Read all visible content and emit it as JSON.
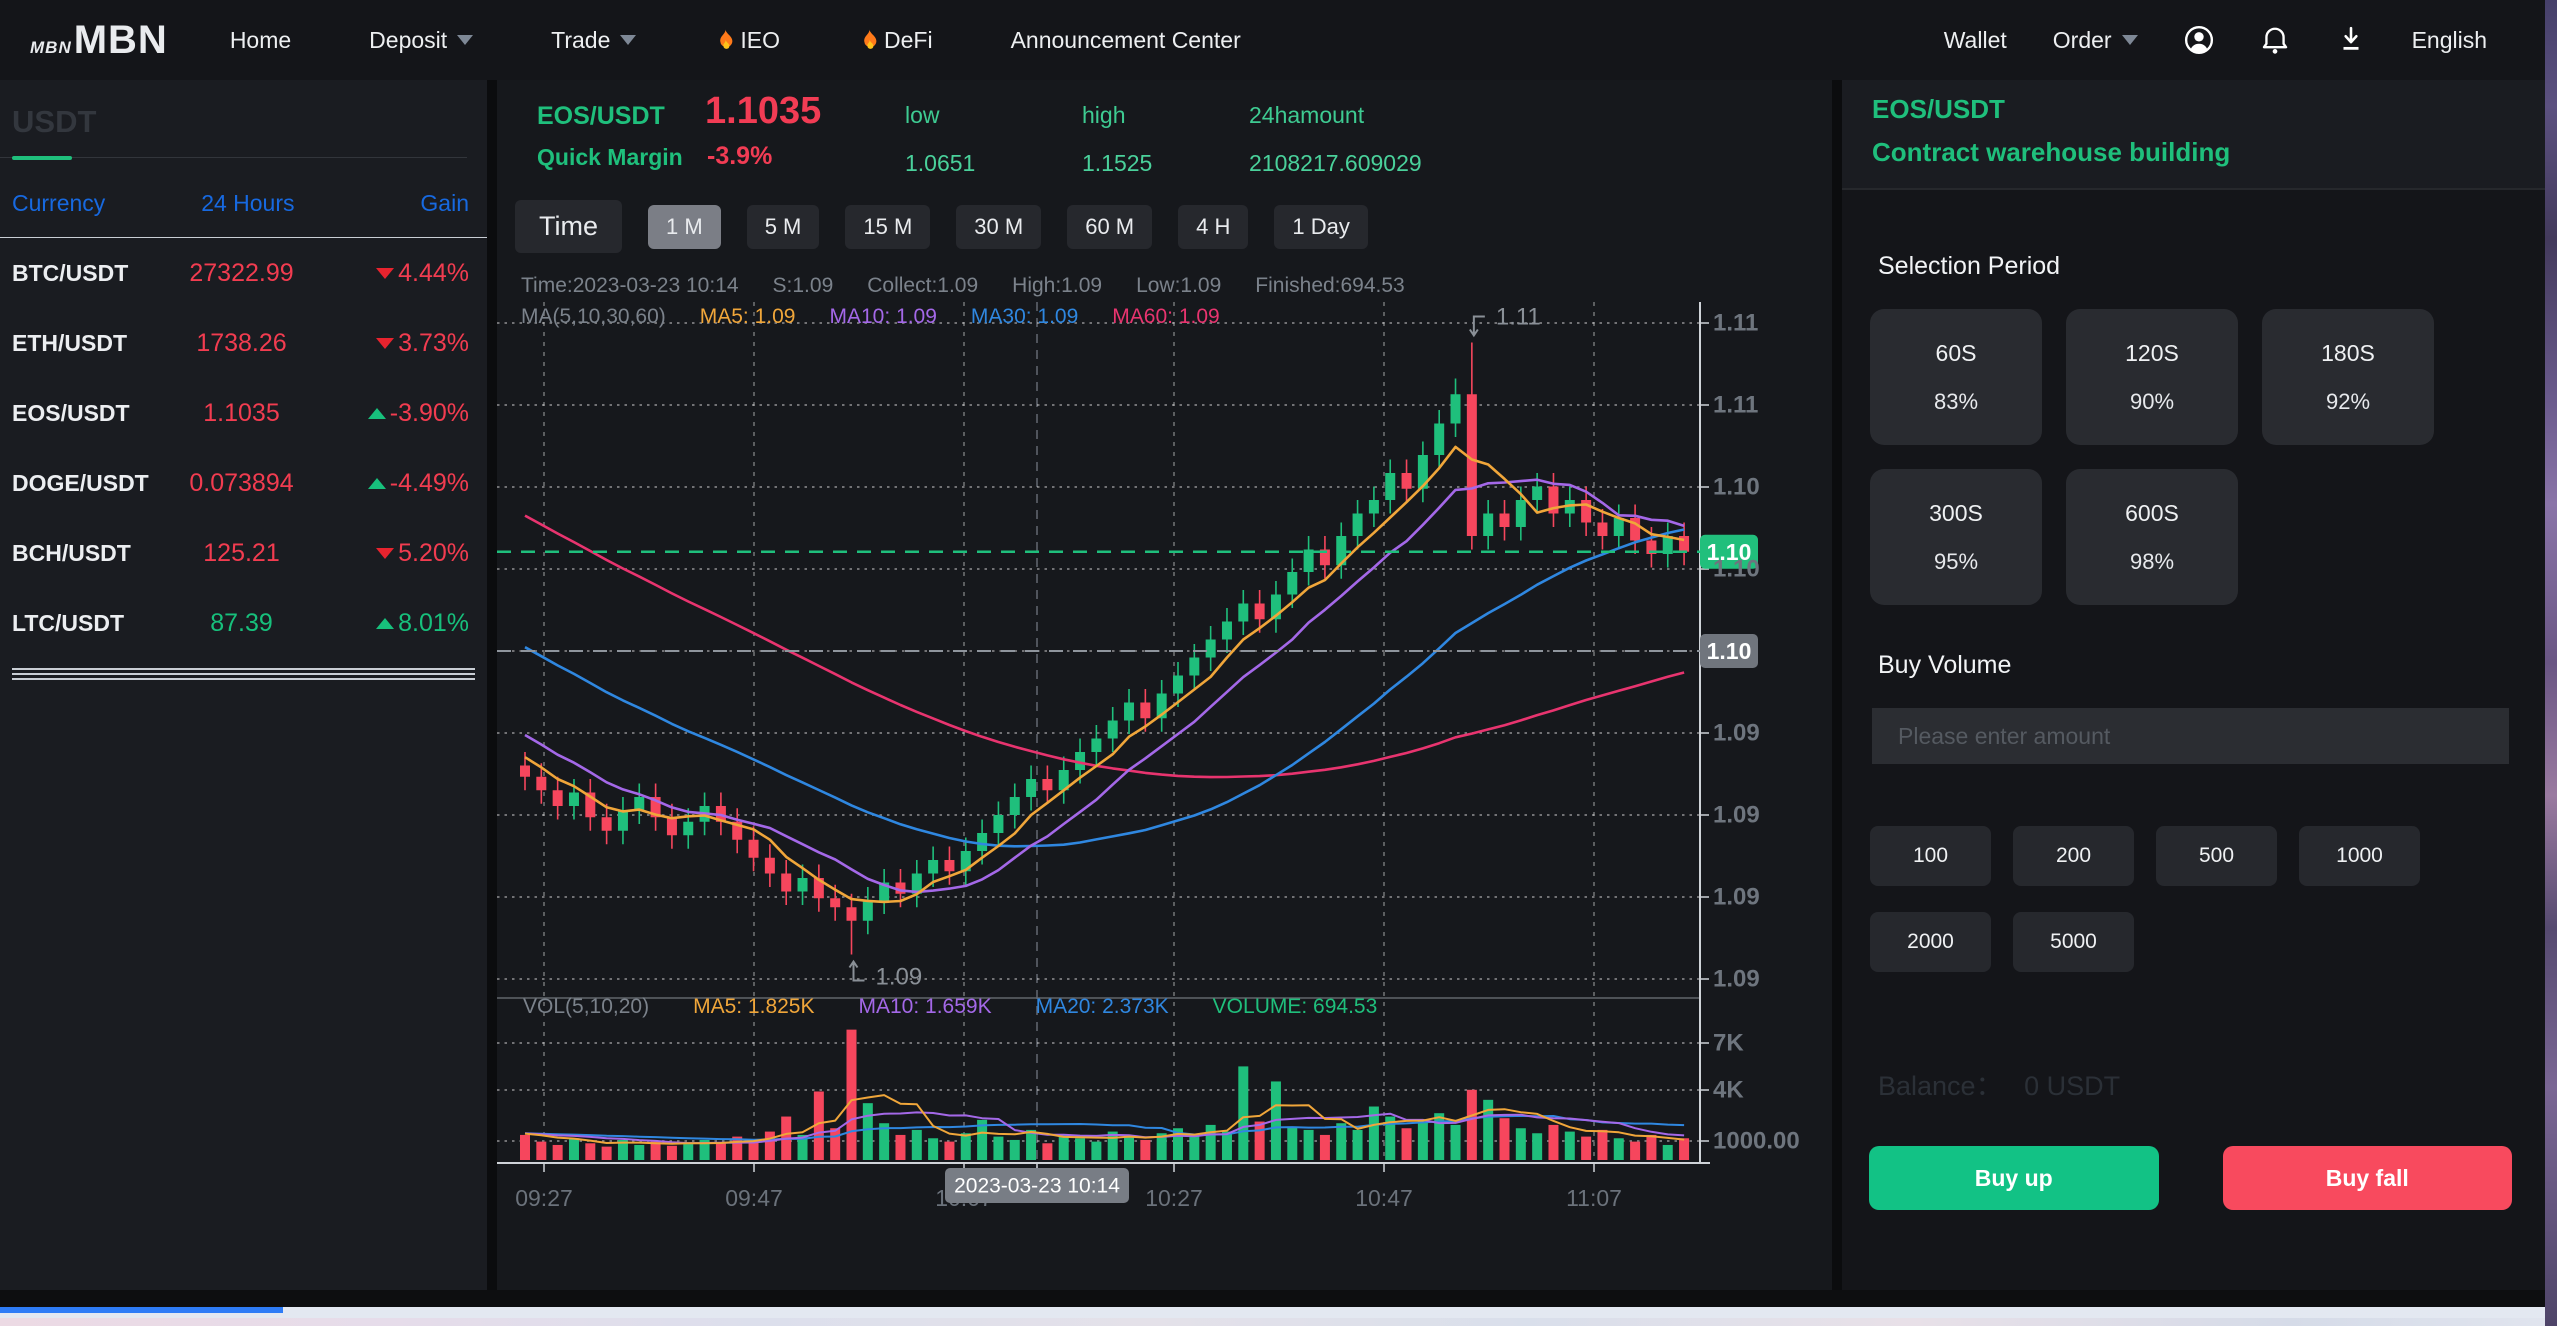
{
  "navbar": {
    "logo_small": "MBN",
    "logo_big": "MBN",
    "items": [
      {
        "label": "Home",
        "caret": false,
        "flame": false
      },
      {
        "label": "Deposit",
        "caret": true,
        "flame": false
      },
      {
        "label": "Trade",
        "caret": true,
        "flame": false
      },
      {
        "label": "IEO",
        "caret": false,
        "flame": true
      },
      {
        "label": "DeFi",
        "caret": false,
        "flame": true
      },
      {
        "label": "Announcement Center",
        "caret": false,
        "flame": false
      }
    ],
    "right_items": [
      {
        "label": "Wallet",
        "caret": false
      },
      {
        "label": "Order",
        "caret": true
      }
    ],
    "language": "English"
  },
  "sidebar": {
    "tab": "USDT",
    "headers": [
      "Currency",
      "24 Hours",
      "Gain"
    ],
    "rows": [
      {
        "pair": "BTC/USDT",
        "price": "27322.99",
        "price_color": "red",
        "arrow": "down",
        "change": "4.44%",
        "change_color": "red"
      },
      {
        "pair": "ETH/USDT",
        "price": "1738.26",
        "price_color": "red",
        "arrow": "down",
        "change": "3.73%",
        "change_color": "red"
      },
      {
        "pair": "EOS/USDT",
        "price": "1.1035",
        "price_color": "red",
        "arrow": "up",
        "change": "-3.90%",
        "change_color": "red"
      },
      {
        "pair": "DOGE/USDT",
        "price": "0.073894",
        "price_color": "red",
        "arrow": "up",
        "change": "-4.49%",
        "change_color": "red"
      },
      {
        "pair": "BCH/USDT",
        "price": "125.21",
        "price_color": "red",
        "arrow": "down",
        "change": "5.20%",
        "change_color": "red"
      },
      {
        "pair": "LTC/USDT",
        "price": "87.39",
        "price_color": "green",
        "arrow": "up",
        "change": "8.01%",
        "change_color": "green"
      }
    ]
  },
  "market_header": {
    "pair": "EOS/USDT",
    "price": "1.1035",
    "quick_margin_label": "Quick Margin",
    "change": "-3.9%",
    "stats": [
      {
        "label": "low",
        "value": "1.0651"
      },
      {
        "label": "high",
        "value": "1.1525"
      },
      {
        "label": "24hamount",
        "value": "2108217.609029"
      }
    ]
  },
  "timeframes": {
    "items": [
      "Time",
      "1 M",
      "5 M",
      "15 M",
      "30 M",
      "60 M",
      "4 H",
      "1 Day"
    ],
    "active_index": 1
  },
  "chart_data": {
    "type": "candlestick+volume",
    "title": "EOS/USDT 1M candles",
    "info_line": [
      "Time:2023-03-23 10:14",
      "S:1.09",
      "Collect:1.09",
      "High:1.09",
      "Low:1.09",
      "Finished:694.53"
    ],
    "ma_line_label": "MA(5,10,30,60)",
    "ma_items": [
      {
        "label": "MA5: 1.09",
        "color": "#f0a63a"
      },
      {
        "label": "MA10: 1.09",
        "color": "#a468e8"
      },
      {
        "label": "MA30: 1.09",
        "color": "#2f87e0"
      },
      {
        "label": "MA60: 1.09",
        "color": "#e8346f"
      }
    ],
    "vol_label": "VOL(5,10,20)",
    "vol_items": [
      {
        "label": "MA5: 1.825K",
        "color": "#f0a63a"
      },
      {
        "label": "MA10: 1.659K",
        "color": "#a468e8"
      },
      {
        "label": "MA20: 2.373K",
        "color": "#2f87e0"
      },
      {
        "label": "VOLUME: 694.53",
        "color": "#1fbf7c"
      }
    ],
    "x_labels": [
      "09:27",
      "09:47",
      "10:07",
      "10:27",
      "10:47",
      "11:07"
    ],
    "y_labels": [
      "1.11",
      "1.11",
      "1.10",
      "1.10",
      "",
      "1.09",
      "1.09",
      "1.09",
      "1.09"
    ],
    "vol_y_labels": [
      "7K",
      "4K",
      "1000.00"
    ],
    "tooltip": "2023-03-23 10:14",
    "current_price": 1.1035,
    "price_badge_label": "1.10",
    "marker_badge_label": "1.10",
    "annotations": [
      {
        "text": "1.11",
        "index": 58,
        "type": "high"
      },
      {
        "text": "1.09",
        "index": 20,
        "type": "low"
      }
    ],
    "open_first": 1.094,
    "closes": [
      1.0935,
      1.0929,
      1.0922,
      1.0928,
      1.0917,
      1.0911,
      1.092,
      1.0926,
      1.0917,
      1.0909,
      1.0915,
      1.0922,
      1.0915,
      1.0907,
      1.0899,
      1.0892,
      1.0884,
      1.089,
      1.0881,
      1.0877,
      1.0871,
      1.088,
      1.0888,
      1.0883,
      1.0892,
      1.0898,
      1.0893,
      1.0902,
      1.091,
      1.0918,
      1.0926,
      1.0934,
      1.0929,
      1.0938,
      1.0946,
      1.0952,
      1.096,
      1.0968,
      1.0961,
      1.0972,
      1.098,
      1.0988,
      1.0996,
      1.1004,
      1.1012,
      1.1005,
      1.1016,
      1.1026,
      1.1036,
      1.1029,
      1.1042,
      1.1052,
      1.1058,
      1.107,
      1.1063,
      1.1078,
      1.1092,
      1.1105,
      1.1042,
      1.1052,
      1.1046,
      1.1058,
      1.1064,
      1.1052,
      1.1058,
      1.1048,
      1.1042,
      1.105,
      1.104,
      1.1034,
      1.1042,
      1.1035
    ],
    "volumes": [
      1500,
      1100,
      900,
      1300,
      1000,
      800,
      1200,
      900,
      1100,
      850,
      950,
      1200,
      1000,
      1400,
      1100,
      1700,
      2600,
      1500,
      4100,
      1900,
      7800,
      3400,
      2200,
      1500,
      1800,
      1300,
      1100,
      1600,
      2400,
      1400,
      1200,
      1800,
      1000,
      1500,
      1300,
      1100,
      1700,
      1400,
      1200,
      1600,
      1900,
      1500,
      2100,
      1700,
      5600,
      2300,
      4700,
      2000,
      1800,
      1500,
      2200,
      1800,
      3200,
      2600,
      1900,
      2300,
      2800,
      2100,
      4200,
      3600,
      2500,
      1900,
      1600,
      2100,
      1700,
      1400,
      1800,
      1300,
      1100,
      1500,
      900,
      1300
    ],
    "wick_overrides": {
      "20": {
        "low": 1.0856
      },
      "57": {
        "high": 1.1112
      },
      "58": {
        "high": 1.1128
      }
    },
    "colors": {
      "up": "#1fbf7c",
      "down": "#f6465d",
      "grid": "#ffffff",
      "axis": "#cfd3d8",
      "label": "#6e757e"
    }
  },
  "trade_panel": {
    "pair": "EOS/USDT",
    "subtitle": "Contract warehouse building",
    "selection_period_label": "Selection Period",
    "periods": [
      {
        "label": "60S",
        "pct": "83%"
      },
      {
        "label": "120S",
        "pct": "90%"
      },
      {
        "label": "180S",
        "pct": "92%"
      },
      {
        "label": "300S",
        "pct": "95%"
      },
      {
        "label": "600S",
        "pct": "98%"
      }
    ],
    "buy_volume_label": "Buy Volume",
    "input_placeholder": "Please enter amount",
    "amounts": [
      "100",
      "200",
      "500",
      "1000",
      "2000",
      "5000"
    ],
    "balance_label": "Balance：",
    "balance_value": "0 USDT",
    "buy_up_label": "Buy up",
    "buy_fall_label": "Buy fall"
  }
}
